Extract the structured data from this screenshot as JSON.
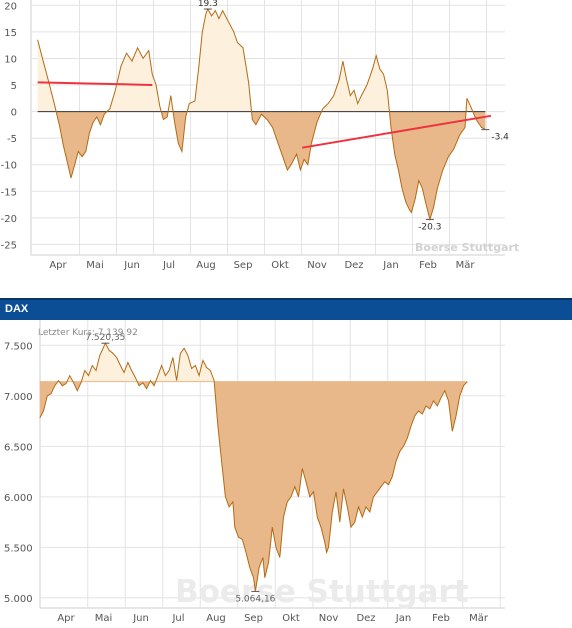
{
  "chart_data": [
    {
      "type": "area",
      "title": "",
      "xlabel": "",
      "ylabel": "",
      "x_ticks": [
        "Apr",
        "Mai",
        "Jun",
        "Jul",
        "Aug",
        "Sep",
        "Okt",
        "Nov",
        "Dez",
        "Jan",
        "Feb",
        "Mär"
      ],
      "y_ticks": [
        20,
        15,
        10,
        5,
        0,
        -5,
        -10,
        -15,
        -20,
        -25
      ],
      "ylim": [
        -27,
        21
      ],
      "baseline": 0,
      "grid": true,
      "annotations": [
        {
          "label": "19.3",
          "month": 4.05,
          "value": 19.3
        },
        {
          "label": "-20.3",
          "month": 10.05,
          "value": -20.3
        },
        {
          "label": "-3.4",
          "month": 11.55,
          "value": -3.4
        }
      ],
      "series": [
        {
          "type": "line",
          "points": [
            [
              -0.55,
              13.5
            ],
            [
              -0.4,
              9.5
            ],
            [
              -0.25,
              5.5
            ],
            [
              -0.1,
              1.5
            ],
            [
              0.05,
              -3
            ],
            [
              0.15,
              -6.5
            ],
            [
              0.25,
              -9.5
            ],
            [
              0.35,
              -12.5
            ],
            [
              0.45,
              -10
            ],
            [
              0.55,
              -7.5
            ],
            [
              0.65,
              -8.5
            ],
            [
              0.75,
              -7.5
            ],
            [
              0.85,
              -4
            ],
            [
              0.95,
              -2
            ],
            [
              1.05,
              -1
            ],
            [
              1.15,
              -2.5
            ],
            [
              1.25,
              -0.5
            ],
            [
              1.4,
              0.5
            ],
            [
              1.55,
              4
            ],
            [
              1.7,
              8.5
            ],
            [
              1.85,
              11
            ],
            [
              2.0,
              9.5
            ],
            [
              2.15,
              12
            ],
            [
              2.3,
              10
            ],
            [
              2.45,
              11.5
            ],
            [
              2.55,
              7
            ],
            [
              2.65,
              5
            ],
            [
              2.75,
              1
            ],
            [
              2.85,
              -1.5
            ],
            [
              2.95,
              -1
            ],
            [
              3.05,
              3
            ],
            [
              3.15,
              -2
            ],
            [
              3.25,
              -6
            ],
            [
              3.35,
              -7.5
            ],
            [
              3.45,
              -1
            ],
            [
              3.55,
              1.5
            ],
            [
              3.7,
              2
            ],
            [
              3.8,
              8
            ],
            [
              3.9,
              15
            ],
            [
              4.0,
              18.5
            ],
            [
              4.05,
              19.3
            ],
            [
              4.15,
              18
            ],
            [
              4.25,
              19
            ],
            [
              4.35,
              17.5
            ],
            [
              4.45,
              19
            ],
            [
              4.6,
              17
            ],
            [
              4.75,
              15
            ],
            [
              4.85,
              13
            ],
            [
              5.0,
              12
            ],
            [
              5.15,
              5.5
            ],
            [
              5.25,
              -1.5
            ],
            [
              5.35,
              -2.5
            ],
            [
              5.5,
              -0.5
            ],
            [
              5.65,
              -1.5
            ],
            [
              5.8,
              -3
            ],
            [
              5.95,
              -6
            ],
            [
              6.1,
              -9
            ],
            [
              6.2,
              -11
            ],
            [
              6.3,
              -10
            ],
            [
              6.45,
              -8
            ],
            [
              6.55,
              -11
            ],
            [
              6.65,
              -9
            ],
            [
              6.75,
              -10
            ],
            [
              6.85,
              -6
            ],
            [
              7.0,
              -2
            ],
            [
              7.15,
              0.5
            ],
            [
              7.3,
              1.5
            ],
            [
              7.45,
              3
            ],
            [
              7.6,
              6
            ],
            [
              7.7,
              9.5
            ],
            [
              7.8,
              6
            ],
            [
              7.9,
              3
            ],
            [
              8.0,
              4
            ],
            [
              8.1,
              1.5
            ],
            [
              8.2,
              3
            ],
            [
              8.35,
              5
            ],
            [
              8.5,
              8
            ],
            [
              8.6,
              10.5
            ],
            [
              8.7,
              8
            ],
            [
              8.8,
              7
            ],
            [
              8.9,
              4
            ],
            [
              9.0,
              -3
            ],
            [
              9.1,
              -8
            ],
            [
              9.2,
              -11
            ],
            [
              9.3,
              -14.5
            ],
            [
              9.4,
              -17
            ],
            [
              9.5,
              -18.5
            ],
            [
              9.55,
              -19
            ],
            [
              9.65,
              -16.5
            ],
            [
              9.75,
              -13
            ],
            [
              9.85,
              -14.5
            ],
            [
              9.95,
              -17.5
            ],
            [
              10.05,
              -20.3
            ],
            [
              10.15,
              -18
            ],
            [
              10.25,
              -14.5
            ],
            [
              10.4,
              -11
            ],
            [
              10.55,
              -8.5
            ],
            [
              10.7,
              -7
            ],
            [
              10.85,
              -4.5
            ],
            [
              11.0,
              -3
            ],
            [
              11.05,
              2.5
            ],
            [
              11.15,
              1
            ],
            [
              11.3,
              -1.5
            ],
            [
              11.45,
              -3
            ],
            [
              11.55,
              -3.4
            ]
          ]
        },
        {
          "type": "trend",
          "points": [
            [
              -0.55,
              5.5
            ],
            [
              2.55,
              5
            ]
          ]
        },
        {
          "type": "trend",
          "points": [
            [
              6.6,
              -6.8
            ],
            [
              11.7,
              -0.8
            ]
          ]
        }
      ]
    },
    {
      "type": "area",
      "title": "DAX",
      "subtitle": "Letzter Kurs: 7.139,92",
      "last_price": 7139.92,
      "xlabel": "",
      "ylabel": "",
      "x_ticks": [
        "Apr",
        "Mai",
        "Jun",
        "Jul",
        "Aug",
        "Sep",
        "Okt",
        "Nov",
        "Dez",
        "Jan",
        "Feb",
        "Mär"
      ],
      "y_ticks": [
        "7.500",
        "7.000",
        "6.500",
        "6.000",
        "5.500",
        "5.000"
      ],
      "y_tick_values": [
        7500,
        7000,
        6500,
        6000,
        5500,
        5000
      ],
      "ylim": [
        4900,
        7750
      ],
      "baseline": 7139.92,
      "grid": true,
      "annotations": [
        {
          "label": "7.520,35",
          "month": 1.05,
          "value": 7520.35
        },
        {
          "label": "5.064,16",
          "month": 5.05,
          "value": 5064.16
        }
      ],
      "series": [
        {
          "type": "line",
          "points": [
            [
              -0.7,
              6780
            ],
            [
              -0.6,
              6850
            ],
            [
              -0.5,
              7000
            ],
            [
              -0.4,
              7020
            ],
            [
              -0.3,
              7100
            ],
            [
              -0.2,
              7150
            ],
            [
              -0.1,
              7100
            ],
            [
              0.0,
              7120
            ],
            [
              0.1,
              7200
            ],
            [
              0.2,
              7130
            ],
            [
              0.3,
              7050
            ],
            [
              0.4,
              7130
            ],
            [
              0.5,
              7250
            ],
            [
              0.6,
              7200
            ],
            [
              0.7,
              7300
            ],
            [
              0.8,
              7250
            ],
            [
              0.9,
              7400
            ],
            [
              1.0,
              7480
            ],
            [
              1.05,
              7520
            ],
            [
              1.15,
              7450
            ],
            [
              1.25,
              7420
            ],
            [
              1.35,
              7380
            ],
            [
              1.45,
              7300
            ],
            [
              1.55,
              7230
            ],
            [
              1.65,
              7330
            ],
            [
              1.75,
              7250
            ],
            [
              1.85,
              7180
            ],
            [
              1.95,
              7100
            ],
            [
              2.05,
              7130
            ],
            [
              2.15,
              7070
            ],
            [
              2.25,
              7150
            ],
            [
              2.35,
              7100
            ],
            [
              2.45,
              7200
            ],
            [
              2.55,
              7300
            ],
            [
              2.65,
              7200
            ],
            [
              2.75,
              7250
            ],
            [
              2.85,
              7380
            ],
            [
              2.95,
              7150
            ],
            [
              3.05,
              7420
            ],
            [
              3.15,
              7470
            ],
            [
              3.25,
              7400
            ],
            [
              3.35,
              7270
            ],
            [
              3.45,
              7300
            ],
            [
              3.55,
              7200
            ],
            [
              3.65,
              7350
            ],
            [
              3.75,
              7280
            ],
            [
              3.85,
              7250
            ],
            [
              3.95,
              7150
            ],
            [
              4.05,
              6700
            ],
            [
              4.15,
              6350
            ],
            [
              4.25,
              6000
            ],
            [
              4.35,
              5900
            ],
            [
              4.45,
              5950
            ],
            [
              4.5,
              5700
            ],
            [
              4.6,
              5600
            ],
            [
              4.7,
              5580
            ],
            [
              4.8,
              5450
            ],
            [
              4.9,
              5300
            ],
            [
              5.0,
              5200
            ],
            [
              5.05,
              5064
            ],
            [
              5.15,
              5300
            ],
            [
              5.25,
              5400
            ],
            [
              5.3,
              5200
            ],
            [
              5.4,
              5350
            ],
            [
              5.5,
              5700
            ],
            [
              5.6,
              5500
            ],
            [
              5.7,
              5400
            ],
            [
              5.8,
              5800
            ],
            [
              5.9,
              5950
            ],
            [
              6.0,
              6000
            ],
            [
              6.1,
              6100
            ],
            [
              6.2,
              6000
            ],
            [
              6.3,
              6280
            ],
            [
              6.4,
              6150
            ],
            [
              6.5,
              6000
            ],
            [
              6.6,
              6050
            ],
            [
              6.7,
              5800
            ],
            [
              6.8,
              5700
            ],
            [
              6.9,
              5550
            ],
            [
              6.95,
              5450
            ],
            [
              7.0,
              5500
            ],
            [
              7.1,
              5850
            ],
            [
              7.2,
              6050
            ],
            [
              7.3,
              5750
            ],
            [
              7.4,
              6080
            ],
            [
              7.5,
              5900
            ],
            [
              7.6,
              5700
            ],
            [
              7.7,
              5750
            ],
            [
              7.8,
              5900
            ],
            [
              7.9,
              5800
            ],
            [
              8.0,
              5900
            ],
            [
              8.1,
              5850
            ],
            [
              8.2,
              6000
            ],
            [
              8.3,
              6050
            ],
            [
              8.4,
              6100
            ],
            [
              8.5,
              6150
            ],
            [
              8.6,
              6120
            ],
            [
              8.7,
              6200
            ],
            [
              8.8,
              6350
            ],
            [
              8.9,
              6450
            ],
            [
              9.0,
              6500
            ],
            [
              9.1,
              6580
            ],
            [
              9.2,
              6700
            ],
            [
              9.3,
              6800
            ],
            [
              9.4,
              6850
            ],
            [
              9.5,
              6820
            ],
            [
              9.6,
              6900
            ],
            [
              9.7,
              6870
            ],
            [
              9.8,
              6950
            ],
            [
              9.9,
              6900
            ],
            [
              10.0,
              6980
            ],
            [
              10.1,
              7050
            ],
            [
              10.2,
              6950
            ],
            [
              10.3,
              6650
            ],
            [
              10.4,
              6800
            ],
            [
              10.5,
              7000
            ],
            [
              10.6,
              7100
            ],
            [
              10.7,
              7139.92
            ]
          ]
        }
      ]
    }
  ]
}
